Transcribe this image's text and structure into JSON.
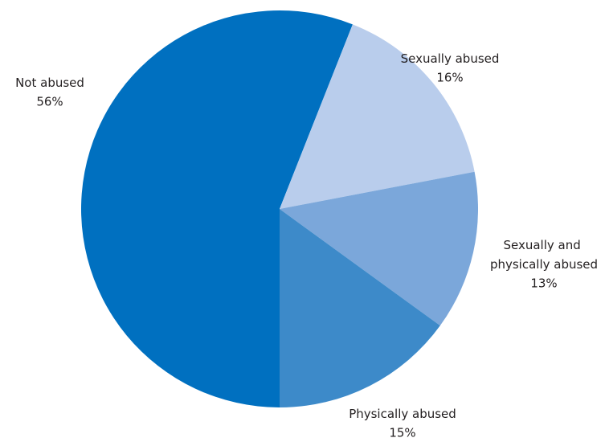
{
  "chart_data": {
    "type": "pie",
    "categories": [
      "Not abused",
      "Sexually abused",
      "Sexually and physically abused",
      "Physically abused"
    ],
    "values": [
      56,
      16,
      13,
      15
    ],
    "value_labels": [
      "56%",
      "16%",
      "13%",
      "15%"
    ],
    "colors": [
      "#0070c0",
      "#b9cdec",
      "#7ba7da",
      "#3d8ac9"
    ]
  }
}
